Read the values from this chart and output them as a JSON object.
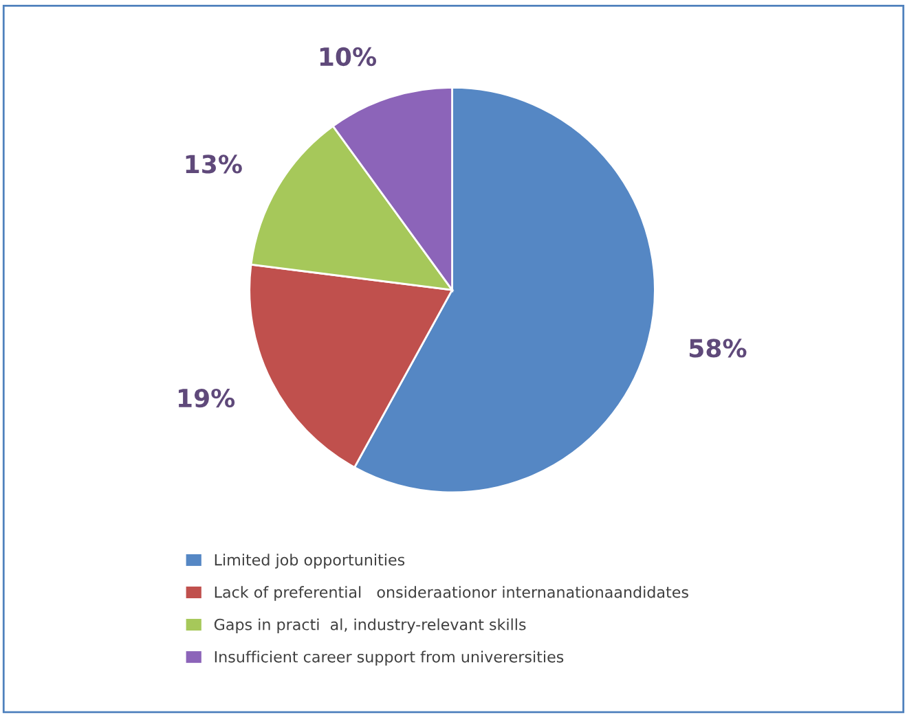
{
  "chart_data": {
    "type": "pie",
    "categories": [
      "Limited job opportunities",
      "Lack of preferential   onsideraationor internanationaandidates",
      "Gaps in practi  al, industry-relevant skills",
      "Insufficient career support from univerersities"
    ],
    "values": [
      58,
      19,
      13,
      10
    ],
    "colors": [
      "#5587c4",
      "#c0504d",
      "#a6c85a",
      "#8c64b9"
    ],
    "value_labels": [
      "58%",
      "19%",
      "13%",
      "10%"
    ],
    "legend": "bottom"
  }
}
